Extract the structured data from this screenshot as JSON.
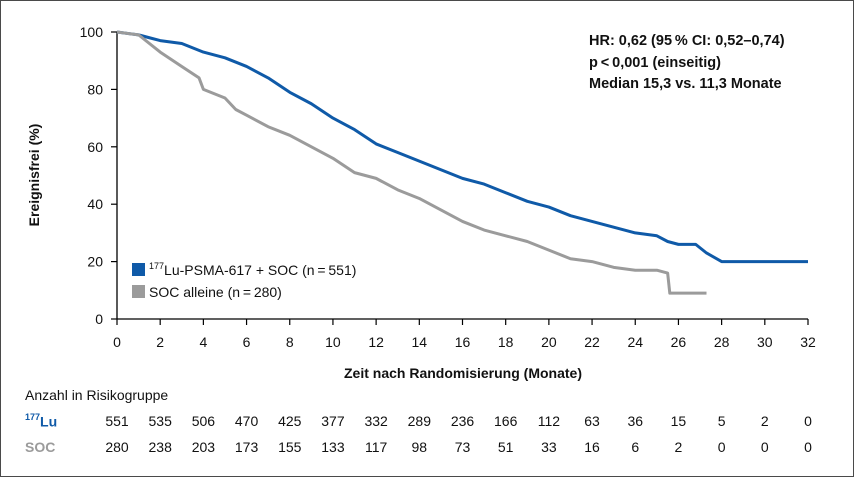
{
  "colors": {
    "lu": "#0f5aa8",
    "soc": "#9b9b9b",
    "axis": "#000000"
  },
  "chart_data": {
    "type": "line",
    "xlabel": "Zeit nach Randomisierung (Monate)",
    "ylabel": "Ereignisfrei (%)",
    "xlim": [
      0,
      32
    ],
    "ylim": [
      0,
      100
    ],
    "xticks": [
      0,
      2,
      4,
      6,
      8,
      10,
      12,
      14,
      16,
      18,
      20,
      22,
      24,
      26,
      28,
      30,
      32
    ],
    "yticks": [
      0,
      20,
      40,
      60,
      80,
      100
    ],
    "grid": false,
    "legend_position": "bottom-left",
    "annotations": [
      "HR: 0,62 (95 % CI: 0,52–0,74)",
      "p < 0,001 (einseitig)",
      "Median 15,3 vs. 11,3 Monate"
    ],
    "series": [
      {
        "legend_sup": "177",
        "legend_text": "Lu-PSMA-617 + SOC (n = 551)",
        "color": "#0f5aa8",
        "x": [
          0,
          1,
          1.5,
          2,
          3,
          4,
          5,
          6,
          7,
          8,
          9,
          10,
          11,
          12,
          13,
          14,
          15,
          16,
          17,
          18,
          19,
          20,
          21,
          22,
          23,
          24,
          25,
          25.5,
          26,
          26.8,
          27.3,
          28,
          30,
          32
        ],
        "y": [
          100,
          99,
          98,
          97,
          96,
          93,
          91,
          88,
          84,
          79,
          75,
          70,
          66,
          61,
          58,
          55,
          52,
          49,
          47,
          44,
          41,
          39,
          36,
          34,
          32,
          30,
          29,
          27,
          26,
          26,
          23,
          20,
          20,
          20
        ]
      },
      {
        "legend_text": "SOC alleine (n = 280)",
        "color": "#9b9b9b",
        "x": [
          0,
          1,
          2,
          3,
          3.8,
          4,
          5,
          5.5,
          6,
          7,
          8,
          9,
          10,
          11,
          12,
          13,
          14,
          15,
          16,
          17,
          18,
          19,
          20,
          21,
          22,
          23,
          24,
          25,
          25.5,
          25.6,
          26.5,
          27.3
        ],
        "y": [
          100,
          99,
          93,
          88,
          84,
          80,
          77,
          73,
          71,
          67,
          64,
          60,
          56,
          51,
          49,
          45,
          42,
          38,
          34,
          31,
          29,
          27,
          24,
          21,
          20,
          18,
          17,
          17,
          16,
          9,
          9,
          9
        ]
      }
    ]
  },
  "risk_table": {
    "title": "Anzahl in Risikogruppe",
    "timepoints": [
      0,
      2,
      4,
      6,
      8,
      10,
      12,
      14,
      16,
      18,
      20,
      22,
      24,
      26,
      28,
      30,
      32
    ],
    "rows": [
      {
        "label_sup": "177",
        "label": "Lu",
        "color": "#0f5aa8",
        "values": [
          "551",
          "535",
          "506",
          "470",
          "425",
          "377",
          "332",
          "289",
          "236",
          "166",
          "112",
          "63",
          "36",
          "15",
          "5",
          "2",
          "0"
        ]
      },
      {
        "label_sup": "",
        "label": "SOC",
        "color": "#9b9b9b",
        "values": [
          "280",
          "238",
          "203",
          "173",
          "155",
          "133",
          "117",
          "98",
          "73",
          "51",
          "33",
          "16",
          "6",
          "2",
          "0",
          "0",
          "0"
        ]
      }
    ]
  }
}
